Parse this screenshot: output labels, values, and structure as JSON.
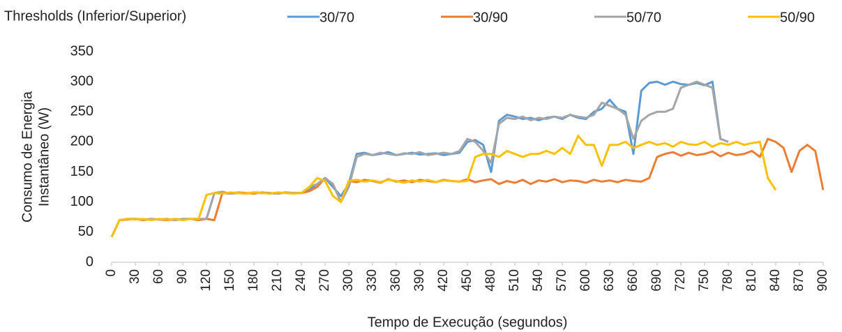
{
  "chart_data": {
    "type": "line",
    "legend_title": "Thresholds (Inferior/Superior)",
    "xlabel": "Tempo de Execução (segundos)",
    "ylabel": [
      "Consumo de Energia",
      "Instantâneo (W)"
    ],
    "x": [
      0,
      10,
      20,
      30,
      40,
      50,
      60,
      70,
      80,
      90,
      100,
      110,
      120,
      130,
      140,
      150,
      160,
      170,
      180,
      190,
      200,
      210,
      220,
      230,
      240,
      250,
      260,
      270,
      280,
      290,
      300,
      310,
      320,
      330,
      340,
      350,
      360,
      370,
      380,
      390,
      400,
      410,
      420,
      430,
      440,
      450,
      460,
      470,
      480,
      490,
      500,
      510,
      520,
      530,
      540,
      550,
      560,
      570,
      580,
      590,
      600,
      610,
      620,
      630,
      640,
      650,
      660,
      670,
      680,
      690,
      700,
      710,
      720,
      730,
      740,
      750,
      760,
      770,
      780,
      790,
      800,
      810,
      820,
      830,
      840,
      850,
      860,
      870,
      880,
      890,
      900
    ],
    "xlim": [
      0,
      900
    ],
    "xticks": [
      0,
      30,
      60,
      90,
      120,
      150,
      180,
      210,
      240,
      270,
      300,
      330,
      360,
      390,
      420,
      450,
      480,
      510,
      540,
      570,
      600,
      630,
      660,
      690,
      720,
      750,
      780,
      810,
      840,
      870,
      900
    ],
    "ylim": [
      0,
      350
    ],
    "yticks": [
      0,
      50,
      100,
      150,
      200,
      250,
      300,
      350
    ],
    "grid": false,
    "legend_position": "top",
    "series": [
      {
        "name": "30/70",
        "color": "#5b9bd5",
        "values": [
          42,
          70,
          72,
          72,
          71,
          72,
          71,
          72,
          70,
          72,
          72,
          72,
          72,
          115,
          117,
          114,
          115,
          114,
          116,
          115,
          115,
          114,
          116,
          115,
          115,
          120,
          130,
          140,
          125,
          110,
          130,
          180,
          182,
          178,
          180,
          183,
          178,
          180,
          182,
          179,
          180,
          181,
          178,
          180,
          182,
          200,
          203,
          195,
          150,
          235,
          245,
          242,
          238,
          240,
          236,
          240,
          242,
          238,
          245,
          240,
          238,
          250,
          255,
          270,
          255,
          250,
          180,
          285,
          298,
          300,
          295,
          300,
          296,
          295,
          298,
          294,
          300,
          205,
          200,
          null,
          null,
          null,
          null,
          null,
          null,
          null,
          null,
          null,
          null,
          null,
          null
        ]
      },
      {
        "name": "30/90",
        "color": "#ed7d31",
        "values": [
          42,
          70,
          71,
          72,
          70,
          72,
          71,
          70,
          72,
          71,
          72,
          70,
          72,
          70,
          115,
          114,
          116,
          115,
          114,
          116,
          115,
          114,
          116,
          115,
          115,
          118,
          125,
          140,
          130,
          100,
          135,
          133,
          137,
          135,
          132,
          138,
          134,
          136,
          133,
          137,
          135,
          133,
          137,
          135,
          134,
          138,
          133,
          136,
          138,
          130,
          135,
          132,
          137,
          130,
          136,
          134,
          138,
          133,
          136,
          135,
          132,
          137,
          134,
          136,
          133,
          137,
          135,
          134,
          140,
          175,
          180,
          183,
          177,
          182,
          178,
          180,
          184,
          176,
          182,
          178,
          180,
          185,
          175,
          205,
          200,
          190,
          150,
          185,
          195,
          185,
          120
        ]
      },
      {
        "name": "50/70",
        "color": "#a5a5a5",
        "values": [
          42,
          70,
          72,
          72,
          71,
          72,
          71,
          72,
          70,
          72,
          72,
          72,
          72,
          115,
          117,
          114,
          115,
          114,
          116,
          115,
          115,
          114,
          116,
          115,
          115,
          125,
          130,
          140,
          130,
          100,
          125,
          175,
          180,
          178,
          182,
          180,
          178,
          181,
          180,
          183,
          178,
          180,
          182,
          180,
          185,
          205,
          200,
          185,
          165,
          230,
          240,
          238,
          242,
          236,
          240,
          238,
          242,
          240,
          245,
          242,
          240,
          245,
          265,
          260,
          255,
          245,
          205,
          235,
          245,
          250,
          250,
          255,
          290,
          295,
          300,
          295,
          290,
          205,
          200,
          null,
          null,
          null,
          null,
          null,
          null,
          null,
          null,
          null,
          null,
          null,
          null
        ]
      },
      {
        "name": "50/90",
        "color": "#ffc000",
        "values": [
          42,
          70,
          72,
          71,
          72,
          70,
          72,
          71,
          72,
          70,
          72,
          72,
          112,
          115,
          114,
          116,
          115,
          114,
          116,
          115,
          114,
          116,
          115,
          114,
          115,
          125,
          140,
          135,
          110,
          100,
          135,
          137,
          134,
          136,
          133,
          137,
          135,
          132,
          136,
          134,
          137,
          133,
          136,
          135,
          134,
          135,
          175,
          180,
          180,
          175,
          185,
          180,
          175,
          180,
          180,
          185,
          180,
          190,
          180,
          210,
          195,
          195,
          160,
          195,
          195,
          200,
          190,
          195,
          200,
          195,
          198,
          192,
          200,
          196,
          195,
          200,
          192,
          198,
          195,
          200,
          195,
          198,
          200,
          140,
          120,
          null,
          null,
          null,
          null,
          null,
          null
        ]
      }
    ]
  }
}
